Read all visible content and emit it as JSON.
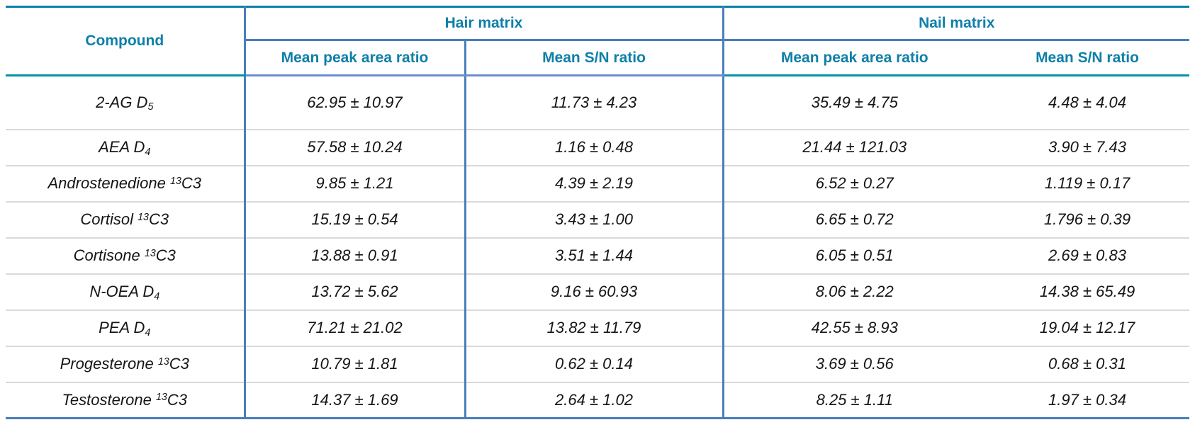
{
  "colors": {
    "header_text": "#0E7FA8",
    "teal_border": "#0C80A8",
    "teal_accent": "#0395A4",
    "blue_border": "#4A7EBD",
    "blue_border_light": "#6A8FCD",
    "row_divider": "#D9D9D9",
    "text_color": "#151515",
    "page_bg": "#FFFFFF"
  },
  "table": {
    "columns": {
      "compound": "Compound",
      "groups": [
        {
          "label": "Hair matrix",
          "subcolumns": [
            "Mean peak area ratio",
            "Mean S/N ratio"
          ]
        },
        {
          "label": "Nail matrix",
          "subcolumns": [
            "Mean peak area ratio",
            "Mean S/N ratio"
          ]
        }
      ]
    },
    "rows": [
      {
        "compound": "2-AG D_{5}",
        "values": [
          "62.95 ± 10.97",
          "11.73 ± 4.23",
          "35.49 ± 4.75",
          "4.48 ± 4.04"
        ]
      },
      {
        "compound": "AEA D_{4}",
        "values": [
          "57.58 ± 10.24",
          "1.16 ± 0.48",
          "21.44 ± 121.03",
          "3.90 ± 7.43"
        ]
      },
      {
        "compound": "Androstenedione ^{13}C3",
        "values": [
          "9.85 ± 1.21",
          "4.39 ± 2.19",
          "6.52 ± 0.27",
          "1.119 ± 0.17"
        ]
      },
      {
        "compound": "Cortisol ^{13}C3",
        "values": [
          "15.19 ± 0.54",
          "3.43 ± 1.00",
          "6.65 ± 0.72",
          "1.796 ± 0.39"
        ]
      },
      {
        "compound": "Cortisone ^{13}C3",
        "values": [
          "13.88 ± 0.91",
          "3.51 ± 1.44",
          "6.05 ± 0.51",
          "2.69 ± 0.83"
        ]
      },
      {
        "compound": "N-OEA D_{4}",
        "values": [
          "13.72 ± 5.62",
          "9.16 ± 60.93",
          "8.06 ± 2.22",
          "14.38 ± 65.49"
        ]
      },
      {
        "compound": "PEA D_{4}",
        "values": [
          "71.21 ± 21.02",
          "13.82 ± 11.79",
          "42.55 ± 8.93",
          "19.04 ± 12.17"
        ]
      },
      {
        "compound": "Progesterone ^{13}C3",
        "values": [
          "10.79 ± 1.81",
          "0.62 ± 0.14",
          "3.69 ± 0.56",
          "0.68 ± 0.31"
        ]
      },
      {
        "compound": "Testosterone ^{13}C3",
        "values": [
          "14.37 ± 1.69",
          "2.64 ± 1.02",
          "8.25 ± 1.11",
          "1.97 ± 0.34"
        ]
      }
    ]
  }
}
